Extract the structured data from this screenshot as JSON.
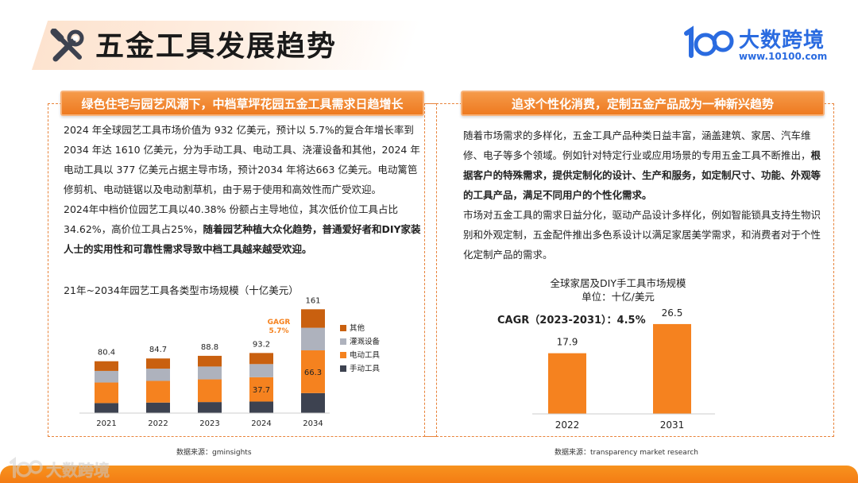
{
  "header": {
    "title": "五金工具发展趋势",
    "icon": "tools-icon"
  },
  "brand": {
    "name": "大数跨境",
    "url": "www.10100.com",
    "mark": "10100-logo",
    "color": "#2a6be0"
  },
  "accent_color": "#ee7a20",
  "left": {
    "banner": "绿色住宅与园艺风潮下，中档草坪花园五金工具需求日趋增长",
    "para1": "2024 年全球园艺工具市场价值为 932 亿美元，预计以 5.7%的复合年增长率到 2034 年达 1610 亿美元，分为手动工具、电动工具、浇灌设备和其他，2024 年电动工具以 377 亿美元占据主导市场，预计2034 年将达663 亿美元。电动篱笆修剪机、电动链锯以及电动割草机，由于易于使用和高效性而广受欢迎。",
    "para2_normal": "2024年中档价位园艺工具以40.38% 份额占主导地位，其次低价位工具占比34.62%，高价位工具占25%，",
    "para2_bold": "随着园艺种植大众化趋势，普通爱好者和DIY家装人士的实用性和可靠性需求导致中档工具越来越受欢迎。",
    "source": "数据来源：gminsights"
  },
  "right": {
    "banner": "追求个性化消费，定制五金产品成为一种新兴趋势",
    "para1_normal": "随着市场需求的多样化，五金工具产品种类日益丰富，涵盖建筑、家居、汽车维修、电子等多个领域。例如针对特定行业或应用场景的专用五金工具不断推出，",
    "para1_bold": "根据客户的特殊需求，提供定制化的设计、生产和服务，如定制尺寸、功能、外观等的工具产品，满足不同用户的个性化需求。",
    "para2": "市场对五金工具的需求日益分化，驱动产品设计多样化，例如智能锁具支持生物识别和外观定制，五金配件推出多色系设计以满足家居美学需求，和消费者对于个性化定制产品的需求。",
    "source": "数据来源：transparency market research"
  },
  "chart_data": [
    {
      "type": "bar",
      "stacked": true,
      "title": "2021年~2034年园艺工具各类型市场规模（十亿美元）",
      "categories": [
        "2021",
        "2022",
        "2023",
        "2024",
        "2034"
      ],
      "totals": [
        80.4,
        84.7,
        88.8,
        93.2,
        161
      ],
      "series": [
        {
          "name": "手动工具",
          "color": "#3d4250",
          "values": [
            15.5,
            16.3,
            17.1,
            17.9,
            31.0
          ]
        },
        {
          "name": "电动工具",
          "color": "#f5821f",
          "values": [
            31.9,
            33.6,
            35.2,
            37.7,
            66.3
          ]
        },
        {
          "name": "灌溉设备",
          "color": "#aeb2bd",
          "values": [
            18.0,
            19.0,
            19.9,
            20.4,
            35.0
          ]
        },
        {
          "name": "其他",
          "color": "#c9600f",
          "values": [
            15.0,
            15.8,
            16.6,
            17.2,
            28.7
          ]
        }
      ],
      "data_labels": [
        {
          "category": "2024",
          "series": "电动工具",
          "text": "37.7"
        },
        {
          "category": "2034",
          "series": "电动工具",
          "text": "66.3"
        }
      ],
      "annotation": {
        "line1": "GAGR",
        "line2": "5.7%"
      },
      "legend_position": "right",
      "ylim": [
        0,
        170
      ]
    },
    {
      "type": "bar",
      "title": "全球家居及DIY手工具市场规模",
      "subtitle": "单位：十亿/美元",
      "annotation": "CAGR（2023-2031）：4.5%",
      "categories": [
        "2022",
        "2031"
      ],
      "values": [
        17.9,
        26.5
      ],
      "labels": [
        "17.9",
        "26.5"
      ],
      "color": "#f5821f",
      "ylim": [
        0,
        30
      ]
    }
  ],
  "footer": {
    "brand": "大数跨境"
  }
}
